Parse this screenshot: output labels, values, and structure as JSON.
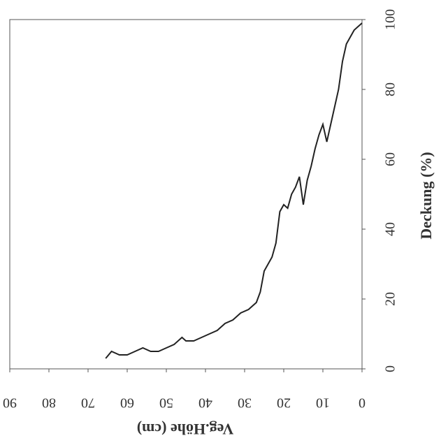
{
  "chart_data": {
    "type": "line",
    "x_label": "Veg.Höhe (cm)",
    "y_label": "Deckung (%)",
    "xlim": [
      0,
      90
    ],
    "ylim": [
      0,
      100
    ],
    "xticks": [
      0,
      10,
      20,
      30,
      40,
      50,
      60,
      70,
      80,
      90
    ],
    "yticks": [
      0,
      20,
      40,
      60,
      80,
      100
    ],
    "color": "#222",
    "x": [
      65.5,
      64,
      62,
      60,
      58,
      56,
      54,
      52,
      50,
      48,
      46,
      45,
      43,
      41,
      39,
      37,
      35,
      33,
      31,
      29,
      27,
      26,
      25,
      24,
      23,
      22,
      21,
      20,
      19,
      18,
      17,
      16,
      15,
      14,
      13,
      12,
      11,
      10,
      9,
      8,
      7,
      6,
      5,
      4,
      3,
      2,
      1,
      0
    ],
    "values": [
      3,
      5,
      4,
      4,
      5,
      6,
      5,
      5,
      6,
      7,
      9,
      8,
      8,
      9,
      10,
      11,
      13,
      14,
      16,
      17,
      19,
      22,
      28,
      30,
      32,
      36,
      45,
      47,
      46,
      50,
      52,
      55,
      47,
      54,
      58,
      63,
      67,
      70,
      65,
      70,
      75,
      80,
      88,
      93,
      95,
      97,
      98,
      99
    ]
  }
}
